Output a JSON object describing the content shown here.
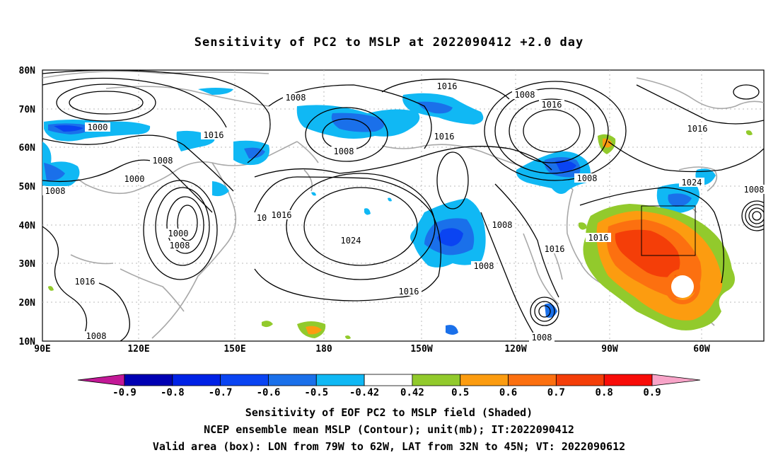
{
  "title": "Sensitivity of PC2 to MSLP at 2022090412 +2.0 day",
  "axes": {
    "lat_labels": [
      "80N",
      "70N",
      "60N",
      "50N",
      "40N",
      "30N",
      "20N",
      "10N"
    ],
    "lon_labels": [
      "90E",
      "120E",
      "150E",
      "180",
      "150W",
      "120W",
      "90W",
      "60W"
    ]
  },
  "contour_labels": [
    "1000",
    "1008",
    "1016",
    "1008",
    "1000",
    "1016",
    "1008",
    "1008",
    "1016",
    "1008",
    "1016",
    "1016",
    "1024",
    "1008",
    "1016",
    "1024",
    "1008",
    "1008",
    "1016",
    "1000",
    "1008",
    "1016",
    "1016",
    "1008",
    "1008",
    "1016",
    "1008",
    "10"
  ],
  "colorbar": {
    "labels": [
      "-0.9",
      "-0.8",
      "-0.7",
      "-0.6",
      "-0.5",
      "-0.42",
      "0.42",
      "0.5",
      "0.6",
      "0.7",
      "0.8",
      "0.9"
    ],
    "colors": [
      "#c21896",
      "#0000b3",
      "#0022e6",
      "#0a44f2",
      "#1a70ea",
      "#10b8f4",
      "#ffffff",
      "#92ca2c",
      "#fc9c10",
      "#fc7010",
      "#f43e08",
      "#f80c08",
      "#f8a4c8"
    ]
  },
  "valid_box": {
    "lon_range": [
      "79W",
      "62W"
    ],
    "lat_range": [
      "32N",
      "45N"
    ]
  },
  "footer": [
    "Sensitivity of EOF PC2 to MSLP field (Shaded)",
    "NCEP ensemble mean MSLP (Contour); unit(mb); IT:2022090412",
    "Valid area (box): LON from 79W to 62W, LAT from 32N to 45N; VT: 2022090612"
  ]
}
